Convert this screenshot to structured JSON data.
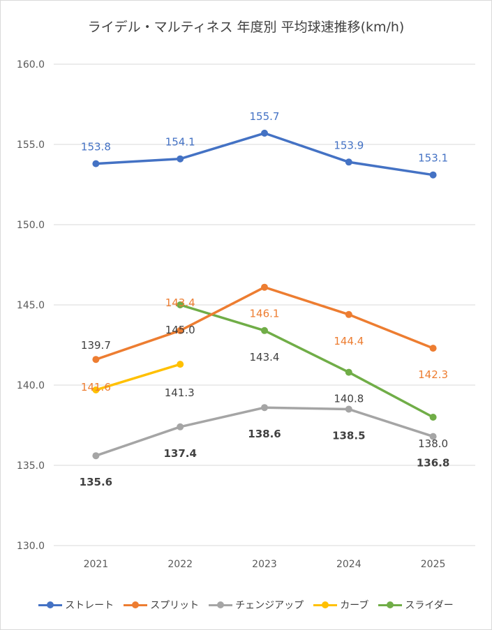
{
  "chart_data": {
    "type": "line",
    "title": "ライデル・マルティネス 年度別 平均球速推移(km/h)",
    "categories": [
      "2021",
      "2022",
      "2023",
      "2024",
      "2025"
    ],
    "ylim": [
      130.0,
      160.0
    ],
    "yticks": [
      "130.0",
      "135.0",
      "140.0",
      "145.0",
      "150.0",
      "155.0",
      "160.0"
    ],
    "grid": true,
    "legend": "bottom",
    "series": [
      {
        "name": "ストレート",
        "color": "#4472c4",
        "values": [
          153.8,
          154.1,
          155.7,
          153.9,
          153.1
        ],
        "labels": [
          "153.8",
          "154.1",
          "155.7",
          "153.9",
          "153.1"
        ]
      },
      {
        "name": "スプリット",
        "color": "#ed7d31",
        "values": [
          141.6,
          143.4,
          146.1,
          144.4,
          142.3
        ],
        "labels": [
          "141.6",
          "143.4",
          "146.1",
          "144.4",
          "142.3"
        ]
      },
      {
        "name": "チェンジアップ",
        "color": "#a5a5a5",
        "values": [
          135.6,
          137.4,
          138.6,
          138.5,
          136.8
        ],
        "labels": [
          "135.6",
          "137.4",
          "138.6",
          "138.5",
          "136.8"
        ]
      },
      {
        "name": "カーブ",
        "color": "#ffc000",
        "values": [
          139.7,
          141.3,
          null,
          null,
          null
        ],
        "labels": [
          "139.7",
          "141.3",
          null,
          null,
          null
        ]
      },
      {
        "name": "スライダー",
        "color": "#70ad47",
        "values": [
          null,
          145.0,
          143.4,
          140.8,
          138.0
        ],
        "labels": [
          null,
          "145.0",
          "143.4",
          "140.8",
          "138.0"
        ]
      }
    ]
  }
}
